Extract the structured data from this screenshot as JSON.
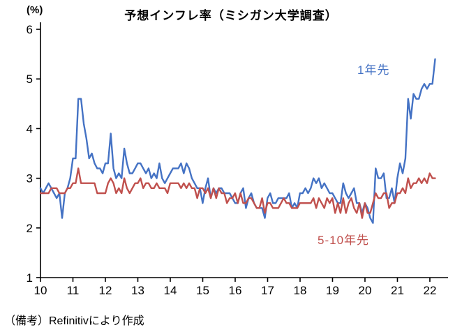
{
  "title": "予想インフレ率（ミシガン大学調査）",
  "unit_label": "(%)",
  "note": "（備考）Refinitivにより作成",
  "labels": {
    "one_year": "1年先",
    "five_ten_year": "5-10年先"
  },
  "colors": {
    "one_year": "#4472c4",
    "five_ten_year": "#c0504d",
    "axis": "#000000"
  },
  "chart_data": {
    "type": "line",
    "title": "予想インフレ率（ミシガン大学調査）",
    "xlabel": "",
    "ylabel": "(%)",
    "x_unit": "year (2010-2022, monthly points)",
    "xlim": [
      2010,
      2022.56
    ],
    "ylim": [
      1,
      6
    ],
    "x_ticks": [
      "10",
      "11",
      "12",
      "13",
      "14",
      "15",
      "16",
      "17",
      "18",
      "19",
      "20",
      "21",
      "22"
    ],
    "y_ticks": [
      1,
      2,
      3,
      4,
      5,
      6
    ],
    "grid": false,
    "legend_position": "inline-annotations",
    "x_start": 2010.0,
    "x_step": 0.0833,
    "series": [
      {
        "name": "1年先",
        "color": "#4472c4",
        "values": [
          2.8,
          2.7,
          2.8,
          2.9,
          2.8,
          2.7,
          2.6,
          2.7,
          2.2,
          2.7,
          2.8,
          3.0,
          3.4,
          3.4,
          4.6,
          4.6,
          4.1,
          3.8,
          3.4,
          3.5,
          3.3,
          3.2,
          3.2,
          3.1,
          3.3,
          3.3,
          3.9,
          3.2,
          3.0,
          3.1,
          3.0,
          3.6,
          3.3,
          3.1,
          3.1,
          3.2,
          3.3,
          3.3,
          3.2,
          3.1,
          3.2,
          3.0,
          3.1,
          3.0,
          3.3,
          3.0,
          2.9,
          3.0,
          3.1,
          3.2,
          3.2,
          3.2,
          3.3,
          3.1,
          3.3,
          3.2,
          3.0,
          2.9,
          2.8,
          2.8,
          2.5,
          2.8,
          3.0,
          2.6,
          2.8,
          2.7,
          2.8,
          2.8,
          2.7,
          2.7,
          2.7,
          2.6,
          2.5,
          2.5,
          2.7,
          2.8,
          2.4,
          2.6,
          2.7,
          2.5,
          2.4,
          2.4,
          2.4,
          2.2,
          2.6,
          2.7,
          2.5,
          2.5,
          2.6,
          2.6,
          2.6,
          2.6,
          2.7,
          2.4,
          2.5,
          2.4,
          2.7,
          2.7,
          2.8,
          2.7,
          2.8,
          3.0,
          2.9,
          3.0,
          2.8,
          2.9,
          2.8,
          2.7,
          2.7,
          2.6,
          2.5,
          2.5,
          2.9,
          2.7,
          2.6,
          2.7,
          2.8,
          2.5,
          2.5,
          2.3,
          2.5,
          2.4,
          2.2,
          2.1,
          3.2,
          3.0,
          3.0,
          3.1,
          2.6,
          2.6,
          2.8,
          2.5,
          3.0,
          3.3,
          3.1,
          3.4,
          4.6,
          4.2,
          4.7,
          4.6,
          4.6,
          4.8,
          4.9,
          4.8,
          4.9,
          4.9,
          5.4
        ]
      },
      {
        "name": "5-10年先",
        "color": "#c0504d",
        "values": [
          2.7,
          2.7,
          2.7,
          2.7,
          2.8,
          2.8,
          2.8,
          2.7,
          2.7,
          2.7,
          2.8,
          2.8,
          2.9,
          2.9,
          3.2,
          2.9,
          2.9,
          2.9,
          2.9,
          2.9,
          2.9,
          2.7,
          2.7,
          2.7,
          2.7,
          2.9,
          3.0,
          2.9,
          2.7,
          2.8,
          2.7,
          3.0,
          2.8,
          2.7,
          2.8,
          2.9,
          2.9,
          3.0,
          2.8,
          2.9,
          2.9,
          2.8,
          2.8,
          2.9,
          2.8,
          2.8,
          2.8,
          2.7,
          2.9,
          2.9,
          2.9,
          2.9,
          2.8,
          2.9,
          2.8,
          2.9,
          2.8,
          2.8,
          2.6,
          2.8,
          2.8,
          2.7,
          2.8,
          2.6,
          2.8,
          2.6,
          2.8,
          2.7,
          2.7,
          2.5,
          2.6,
          2.6,
          2.7,
          2.5,
          2.7,
          2.5,
          2.5,
          2.6,
          2.6,
          2.5,
          2.4,
          2.4,
          2.6,
          2.3,
          2.5,
          2.5,
          2.4,
          2.4,
          2.4,
          2.5,
          2.6,
          2.5,
          2.5,
          2.4,
          2.4,
          2.4,
          2.5,
          2.5,
          2.5,
          2.5,
          2.5,
          2.6,
          2.4,
          2.6,
          2.5,
          2.4,
          2.6,
          2.5,
          2.6,
          2.3,
          2.5,
          2.3,
          2.6,
          2.3,
          2.5,
          2.6,
          2.4,
          2.3,
          2.5,
          2.2,
          2.5,
          2.3,
          2.3,
          2.5,
          2.7,
          2.6,
          2.6,
          2.7,
          2.7,
          2.4,
          2.5,
          2.5,
          2.7,
          2.7,
          2.8,
          2.7,
          3.0,
          2.8,
          2.9,
          2.9,
          3.0,
          2.9,
          3.0,
          2.9,
          3.1,
          3.0,
          3.0
        ]
      }
    ]
  }
}
